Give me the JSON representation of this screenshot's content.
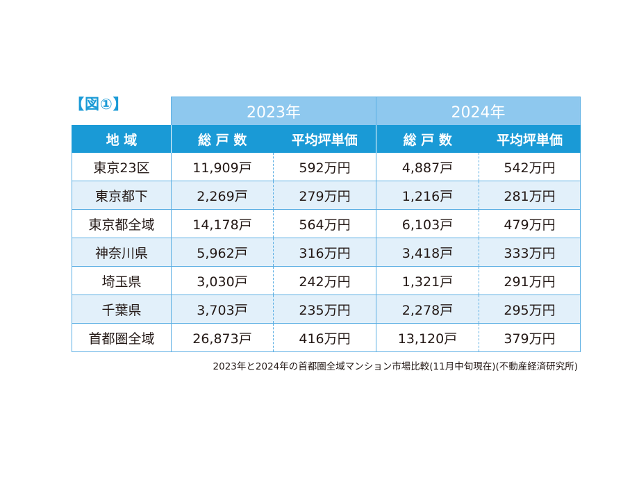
{
  "figure_label": "【図①】",
  "years": [
    "2023年",
    "2024年"
  ],
  "headers": {
    "region": "地 域",
    "units": "総 戸 数",
    "avg_price": "平均坪単価"
  },
  "rows": [
    {
      "region": "東京23区",
      "units_2023": "11,909戸",
      "price_2023": "592万円",
      "units_2024": "4,887戸",
      "price_2024": "542万円"
    },
    {
      "region": "東京都下",
      "units_2023": "2,269戸",
      "price_2023": "279万円",
      "units_2024": "1,216戸",
      "price_2024": "281万円"
    },
    {
      "region": "東京都全域",
      "units_2023": "14,178戸",
      "price_2023": "564万円",
      "units_2024": "6,103戸",
      "price_2024": "479万円"
    },
    {
      "region": "神奈川県",
      "units_2023": "5,962戸",
      "price_2023": "316万円",
      "units_2024": "3,418戸",
      "price_2024": "333万円"
    },
    {
      "region": "埼玉県",
      "units_2023": "3,030戸",
      "price_2023": "242万円",
      "units_2024": "1,321戸",
      "price_2024": "291万円"
    },
    {
      "region": "千葉県",
      "units_2023": "3,703戸",
      "price_2023": "235万円",
      "units_2024": "2,278戸",
      "price_2024": "295万円"
    },
    {
      "region": "首都圏全域",
      "units_2023": "26,873戸",
      "price_2023": "416万円",
      "units_2024": "13,120戸",
      "price_2024": "379万円"
    }
  ],
  "caption": "2023年と2024年の首都圏全域マンション市場比較(11月中旬現在)(不動産経済研究所)",
  "colors": {
    "header_blue": "#1a9ad6",
    "year_blue": "#8ec8ee",
    "row_shade": "#e2f0fa",
    "border_blue": "#5aaee3"
  }
}
